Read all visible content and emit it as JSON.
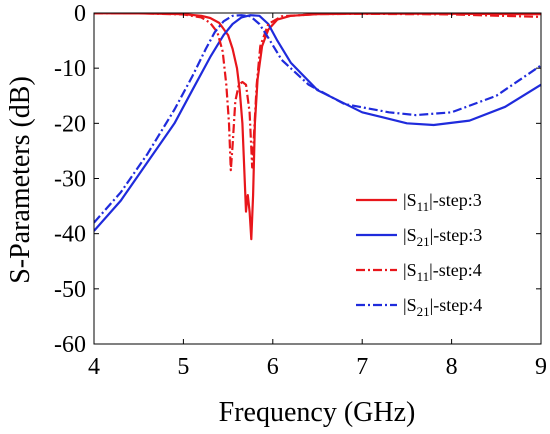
{
  "chart_data": {
    "type": "line",
    "title": "",
    "xlabel": "Frequency (GHz)",
    "ylabel": "S-Parameters (dB)",
    "xlim": [
      4,
      9
    ],
    "ylim": [
      -60,
      0
    ],
    "xticks": [
      "4",
      "5",
      "6",
      "7",
      "8",
      "9"
    ],
    "yticks": [
      "0",
      "-10",
      "-20",
      "-30",
      "-40",
      "-50",
      "-60"
    ],
    "grid": false,
    "legend_position": "right",
    "series": [
      {
        "legend_label": "-step:3",
        "legend_param": "S",
        "legend_sub": "11",
        "color": "#e8161b",
        "dash": "solid",
        "points": [
          [
            4.0,
            -0.05
          ],
          [
            4.5,
            -0.08
          ],
          [
            5.0,
            -0.2
          ],
          [
            5.2,
            -0.5
          ],
          [
            5.3,
            -0.9
          ],
          [
            5.4,
            -1.8
          ],
          [
            5.5,
            -4.0
          ],
          [
            5.55,
            -6.5
          ],
          [
            5.6,
            -10.0
          ],
          [
            5.63,
            -14.0
          ],
          [
            5.66,
            -20.0
          ],
          [
            5.68,
            -28.0
          ],
          [
            5.7,
            -36.0
          ],
          [
            5.71,
            -34.0
          ],
          [
            5.72,
            -33.0
          ],
          [
            5.74,
            -36.0
          ],
          [
            5.76,
            -41.0
          ],
          [
            5.78,
            -33.0
          ],
          [
            5.8,
            -20.0
          ],
          [
            5.83,
            -12.0
          ],
          [
            5.88,
            -6.0
          ],
          [
            5.95,
            -3.0
          ],
          [
            6.05,
            -1.2
          ],
          [
            6.2,
            -0.5
          ],
          [
            6.5,
            -0.2
          ],
          [
            7.0,
            -0.1
          ],
          [
            8.0,
            -0.15
          ],
          [
            9.0,
            -0.2
          ]
        ]
      },
      {
        "legend_label": "-step:3",
        "legend_param": "S",
        "legend_sub": "21",
        "color": "#1f2bdc",
        "dash": "solid",
        "points": [
          [
            4.0,
            -39.5
          ],
          [
            4.3,
            -34.0
          ],
          [
            4.6,
            -27.0
          ],
          [
            4.9,
            -20.0
          ],
          [
            5.1,
            -14.0
          ],
          [
            5.3,
            -8.0
          ],
          [
            5.45,
            -4.0
          ],
          [
            5.55,
            -2.0
          ],
          [
            5.65,
            -0.8
          ],
          [
            5.75,
            -0.4
          ],
          [
            5.85,
            -0.5
          ],
          [
            5.95,
            -2.0
          ],
          [
            6.05,
            -5.0
          ],
          [
            6.2,
            -9.0
          ],
          [
            6.5,
            -14.0
          ],
          [
            7.0,
            -18.0
          ],
          [
            7.5,
            -20.0
          ],
          [
            7.8,
            -20.3
          ],
          [
            8.2,
            -19.5
          ],
          [
            8.6,
            -17.0
          ],
          [
            9.0,
            -13.0
          ]
        ]
      },
      {
        "legend_label": "-step:4",
        "legend_param": "S",
        "legend_sub": "11",
        "color": "#e8161b",
        "dash": "dashdot",
        "points": [
          [
            4.0,
            -0.05
          ],
          [
            4.5,
            -0.06
          ],
          [
            5.0,
            -0.25
          ],
          [
            5.2,
            -0.8
          ],
          [
            5.3,
            -1.8
          ],
          [
            5.38,
            -3.5
          ],
          [
            5.44,
            -7.0
          ],
          [
            5.48,
            -13.0
          ],
          [
            5.51,
            -20.0
          ],
          [
            5.53,
            -28.5
          ],
          [
            5.55,
            -24.0
          ],
          [
            5.58,
            -16.0
          ],
          [
            5.62,
            -13.0
          ],
          [
            5.66,
            -12.5
          ],
          [
            5.7,
            -13.0
          ],
          [
            5.74,
            -18.0
          ],
          [
            5.77,
            -28.0
          ],
          [
            5.79,
            -22.0
          ],
          [
            5.82,
            -13.0
          ],
          [
            5.86,
            -6.0
          ],
          [
            5.95,
            -2.0
          ],
          [
            6.1,
            -0.6
          ],
          [
            6.5,
            -0.2
          ],
          [
            7.0,
            -0.15
          ],
          [
            8.0,
            -0.25
          ],
          [
            9.0,
            -0.7
          ]
        ]
      },
      {
        "legend_label": "-step:4",
        "legend_param": "S",
        "legend_sub": "21",
        "color": "#1f2bdc",
        "dash": "dashdot",
        "points": [
          [
            4.0,
            -38.0
          ],
          [
            4.3,
            -32.5
          ],
          [
            4.6,
            -25.5
          ],
          [
            4.9,
            -17.5
          ],
          [
            5.1,
            -11.5
          ],
          [
            5.25,
            -6.5
          ],
          [
            5.35,
            -3.5
          ],
          [
            5.45,
            -1.5
          ],
          [
            5.55,
            -0.5
          ],
          [
            5.65,
            -0.4
          ],
          [
            5.75,
            -0.6
          ],
          [
            5.85,
            -2.0
          ],
          [
            5.95,
            -4.5
          ],
          [
            6.1,
            -8.5
          ],
          [
            6.4,
            -13.0
          ],
          [
            6.8,
            -16.5
          ],
          [
            7.3,
            -18.0
          ],
          [
            7.6,
            -18.5
          ],
          [
            8.0,
            -18.0
          ],
          [
            8.5,
            -15.0
          ],
          [
            9.0,
            -9.5
          ]
        ]
      }
    ]
  }
}
